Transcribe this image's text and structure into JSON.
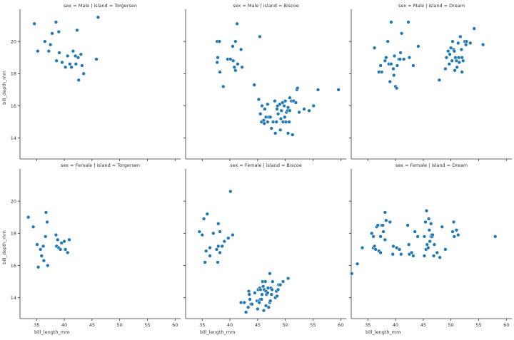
{
  "chart_data": {
    "type": "scatter",
    "layout": "facet-grid 2 rows x 3 columns, shared axes",
    "xlabel": "bill_length_mm",
    "ylabel": "bill_depth_mm",
    "xlim": [
      32,
      61
    ],
    "ylim": [
      12.7,
      22
    ],
    "xticks": [
      35,
      40,
      45,
      50,
      55,
      60
    ],
    "yticks": [
      14,
      16,
      18,
      20
    ],
    "grid": false,
    "point_color": "#1f77b4",
    "panels": [
      {
        "title": "sex = Male | island = Torgersen",
        "points": [
          [
            34.6,
            21.1
          ],
          [
            35.2,
            19.4
          ],
          [
            36.5,
            20.0
          ],
          [
            37.2,
            19.4
          ],
          [
            37.5,
            19.8
          ],
          [
            37.8,
            20.5
          ],
          [
            38.5,
            21.2
          ],
          [
            39.0,
            20.6
          ],
          [
            38.6,
            18.8
          ],
          [
            39.1,
            19.3
          ],
          [
            39.6,
            18.7
          ],
          [
            40.2,
            18.4
          ],
          [
            40.6,
            19.1
          ],
          [
            41.0,
            18.6
          ],
          [
            41.3,
            18.4
          ],
          [
            41.6,
            19.4
          ],
          [
            42.0,
            19.1
          ],
          [
            42.1,
            18.6
          ],
          [
            42.3,
            20.7
          ],
          [
            42.6,
            17.6
          ],
          [
            42.5,
            19.0
          ],
          [
            43.0,
            19.2
          ],
          [
            43.2,
            18.5
          ],
          [
            43.5,
            18.0
          ],
          [
            45.8,
            18.9
          ],
          [
            46.1,
            21.5
          ]
        ]
      },
      {
        "title": "sex = Male | island = Biscoe",
        "points": [
          [
            37.7,
            20.0
          ],
          [
            38.1,
            20.0
          ],
          [
            37.8,
            19.0
          ],
          [
            37.7,
            18.7
          ],
          [
            38.2,
            18.1
          ],
          [
            38.8,
            17.2
          ],
          [
            39.6,
            18.9
          ],
          [
            40.1,
            18.9
          ],
          [
            40.6,
            18.8
          ],
          [
            40.5,
            19.7
          ],
          [
            40.8,
            18.4
          ],
          [
            41.0,
            20.0
          ],
          [
            41.3,
            21.1
          ],
          [
            41.0,
            18.2
          ],
          [
            41.4,
            18.6
          ],
          [
            42.0,
            19.5
          ],
          [
            42.2,
            18.4
          ],
          [
            44.4,
            17.3
          ],
          [
            45.4,
            20.3
          ],
          [
            45.2,
            16.4
          ],
          [
            45.8,
            16.0
          ],
          [
            45.5,
            15.5
          ],
          [
            45.7,
            15.0
          ],
          [
            46.1,
            15.1
          ],
          [
            46.2,
            14.9
          ],
          [
            46.3,
            15.8
          ],
          [
            46.5,
            15.3
          ],
          [
            46.8,
            15.0
          ],
          [
            46.8,
            16.1
          ],
          [
            47.0,
            15.3
          ],
          [
            47.3,
            15.3
          ],
          [
            47.5,
            14.6
          ],
          [
            47.8,
            15.0
          ],
          [
            48.1,
            16.3
          ],
          [
            48.2,
            14.3
          ],
          [
            48.4,
            15.0
          ],
          [
            48.5,
            15.8
          ],
          [
            48.6,
            16.0
          ],
          [
            48.7,
            15.5
          ],
          [
            49.0,
            16.1
          ],
          [
            49.1,
            14.5
          ],
          [
            49.2,
            15.2
          ],
          [
            49.3,
            15.7
          ],
          [
            49.5,
            16.2
          ],
          [
            49.6,
            15.0
          ],
          [
            49.8,
            16.0
          ],
          [
            49.9,
            15.3
          ],
          [
            50.0,
            16.3
          ],
          [
            50.1,
            15.0
          ],
          [
            50.2,
            15.6
          ],
          [
            50.4,
            15.7
          ],
          [
            50.5,
            15.9
          ],
          [
            50.5,
            14.3
          ],
          [
            50.7,
            15.0
          ],
          [
            50.8,
            15.7
          ],
          [
            50.8,
            16.5
          ],
          [
            51.1,
            16.3
          ],
          [
            51.3,
            14.2
          ],
          [
            51.5,
            16.3
          ],
          [
            51.9,
            16.2
          ],
          [
            52.1,
            17.0
          ],
          [
            52.2,
            17.1
          ],
          [
            52.5,
            15.6
          ],
          [
            53.4,
            15.8
          ],
          [
            54.3,
            15.7
          ],
          [
            55.1,
            16.0
          ],
          [
            55.9,
            17.0
          ],
          [
            59.6,
            17.0
          ]
        ]
      },
      {
        "title": "sex = Male | island = Dream",
        "points": [
          [
            36.2,
            19.6
          ],
          [
            37.0,
            18.1
          ],
          [
            37.3,
            18.5
          ],
          [
            37.5,
            18.1
          ],
          [
            38.1,
            18.8
          ],
          [
            38.3,
            19.0
          ],
          [
            38.6,
            20.0
          ],
          [
            38.8,
            18.6
          ],
          [
            39.0,
            17.5
          ],
          [
            39.2,
            18.6
          ],
          [
            39.2,
            21.2
          ],
          [
            39.6,
            18.3
          ],
          [
            39.7,
            17.9
          ],
          [
            39.8,
            19.1
          ],
          [
            40.0,
            17.2
          ],
          [
            40.2,
            17.1
          ],
          [
            40.3,
            18.5
          ],
          [
            40.6,
            18.9
          ],
          [
            40.8,
            18.9
          ],
          [
            40.9,
            19.3
          ],
          [
            41.1,
            20.5
          ],
          [
            41.5,
            18.9
          ],
          [
            42.3,
            21.2
          ],
          [
            42.5,
            19.0
          ],
          [
            43.2,
            18.5
          ],
          [
            44.1,
            19.7
          ],
          [
            47.9,
            17.6
          ],
          [
            49.0,
            18.3
          ],
          [
            49.2,
            19.0
          ],
          [
            49.5,
            19.4
          ],
          [
            49.7,
            18.6
          ],
          [
            49.8,
            19.2
          ],
          [
            50.0,
            19.6
          ],
          [
            50.2,
            18.8
          ],
          [
            50.3,
            20.0
          ],
          [
            50.5,
            19.5
          ],
          [
            50.6,
            19.4
          ],
          [
            50.7,
            18.2
          ],
          [
            50.8,
            19.0
          ],
          [
            51.0,
            18.8
          ],
          [
            51.1,
            18.4
          ],
          [
            51.3,
            19.9
          ],
          [
            51.4,
            19.0
          ],
          [
            51.5,
            18.7
          ],
          [
            51.7,
            20.3
          ],
          [
            51.9,
            19.5
          ],
          [
            52.0,
            18.1
          ],
          [
            52.0,
            19.0
          ],
          [
            52.2,
            18.8
          ],
          [
            52.5,
            20.0
          ],
          [
            52.7,
            19.8
          ],
          [
            52.8,
            20.0
          ],
          [
            53.5,
            19.9
          ],
          [
            54.2,
            20.8
          ],
          [
            55.8,
            19.8
          ]
        ]
      },
      {
        "title": "sex = Female | island = Torgersen",
        "points": [
          [
            33.5,
            19.0
          ],
          [
            34.4,
            18.4
          ],
          [
            35.1,
            17.3
          ],
          [
            35.3,
            15.9
          ],
          [
            35.7,
            17.0
          ],
          [
            35.9,
            16.6
          ],
          [
            36.2,
            17.2
          ],
          [
            36.3,
            16.3
          ],
          [
            36.6,
            17.8
          ],
          [
            36.7,
            19.3
          ],
          [
            36.9,
            18.7
          ],
          [
            37.0,
            16.0
          ],
          [
            38.5,
            17.9
          ],
          [
            38.6,
            17.2
          ],
          [
            38.8,
            17.6
          ],
          [
            39.0,
            17.1
          ],
          [
            39.3,
            17.0
          ],
          [
            39.5,
            17.4
          ],
          [
            40.0,
            17.5
          ],
          [
            40.2,
            17.0
          ],
          [
            40.6,
            16.8
          ],
          [
            40.9,
            17.6
          ]
        ]
      },
      {
        "title": "sex = Female | island = Biscoe",
        "points": [
          [
            34.5,
            18.1
          ],
          [
            35.0,
            17.9
          ],
          [
            35.3,
            18.9
          ],
          [
            35.5,
            16.2
          ],
          [
            35.7,
            16.9
          ],
          [
            35.9,
            19.2
          ],
          [
            36.4,
            17.1
          ],
          [
            36.4,
            16.6
          ],
          [
            37.0,
            18.0
          ],
          [
            37.6,
            17.0
          ],
          [
            37.8,
            16.2
          ],
          [
            37.9,
            17.2
          ],
          [
            37.9,
            18.6
          ],
          [
            38.2,
            18.1
          ],
          [
            38.2,
            16.8
          ],
          [
            38.6,
            17.2
          ],
          [
            39.0,
            17.5
          ],
          [
            39.7,
            17.7
          ],
          [
            40.1,
            20.6
          ],
          [
            40.5,
            17.9
          ],
          [
            42.0,
            13.7
          ],
          [
            42.6,
            13.7
          ],
          [
            42.9,
            13.1
          ],
          [
            43.3,
            13.4
          ],
          [
            43.4,
            14.4
          ],
          [
            43.5,
            14.2
          ],
          [
            43.6,
            13.9
          ],
          [
            43.8,
            13.6
          ],
          [
            44.0,
            13.6
          ],
          [
            44.5,
            14.3
          ],
          [
            44.9,
            13.8
          ],
          [
            45.0,
            13.3
          ],
          [
            45.1,
            14.5
          ],
          [
            45.2,
            13.8
          ],
          [
            45.3,
            13.7
          ],
          [
            45.4,
            14.6
          ],
          [
            45.5,
            13.9
          ],
          [
            45.5,
            14.5
          ],
          [
            45.7,
            13.9
          ],
          [
            45.8,
            14.2
          ],
          [
            45.9,
            15.0
          ],
          [
            46.0,
            14.7
          ],
          [
            46.1,
            13.2
          ],
          [
            46.2,
            14.5
          ],
          [
            46.4,
            15.0
          ],
          [
            46.5,
            14.4
          ],
          [
            46.5,
            13.5
          ],
          [
            46.6,
            14.2
          ],
          [
            46.8,
            14.3
          ],
          [
            46.9,
            14.6
          ],
          [
            47.0,
            13.4
          ],
          [
            47.2,
            13.7
          ],
          [
            47.2,
            15.5
          ],
          [
            47.3,
            13.8
          ],
          [
            47.4,
            14.6
          ],
          [
            47.5,
            14.2
          ],
          [
            47.6,
            14.5
          ],
          [
            47.7,
            15.0
          ],
          [
            48.2,
            14.0
          ],
          [
            48.4,
            14.4
          ],
          [
            48.5,
            14.1
          ],
          [
            48.7,
            14.5
          ],
          [
            48.8,
            14.8
          ],
          [
            49.1,
            14.8
          ],
          [
            49.6,
            15.0
          ],
          [
            50.5,
            15.2
          ]
        ]
      },
      {
        "title": "sex = Female | island = Dream",
        "points": [
          [
            32.1,
            15.5
          ],
          [
            33.1,
            16.1
          ],
          [
            34.0,
            17.1
          ],
          [
            35.7,
            18.0
          ],
          [
            36.0,
            17.8
          ],
          [
            36.0,
            17.1
          ],
          [
            36.2,
            17.2
          ],
          [
            36.4,
            17.0
          ],
          [
            36.6,
            18.4
          ],
          [
            36.8,
            18.5
          ],
          [
            37.0,
            16.9
          ],
          [
            37.3,
            16.8
          ],
          [
            37.3,
            17.8
          ],
          [
            37.5,
            18.5
          ],
          [
            37.7,
            18.5
          ],
          [
            37.8,
            18.1
          ],
          [
            38.1,
            17.6
          ],
          [
            38.1,
            19.3
          ],
          [
            38.3,
            18.8
          ],
          [
            39.0,
            18.7
          ],
          [
            39.5,
            16.7
          ],
          [
            39.6,
            17.2
          ],
          [
            40.2,
            17.1
          ],
          [
            40.7,
            17.0
          ],
          [
            41.0,
            16.7
          ],
          [
            42.2,
            18.5
          ],
          [
            42.4,
            17.3
          ],
          [
            42.5,
            16.7
          ],
          [
            42.9,
            16.8
          ],
          [
            43.2,
            16.6
          ],
          [
            43.5,
            18.1
          ],
          [
            44.0,
            17.8
          ],
          [
            45.2,
            17.8
          ],
          [
            45.2,
            16.6
          ],
          [
            45.4,
            18.7
          ],
          [
            45.5,
            17.0
          ],
          [
            45.6,
            19.4
          ],
          [
            45.7,
            17.3
          ],
          [
            45.9,
            17.1
          ],
          [
            46.0,
            18.9
          ],
          [
            46.1,
            18.2
          ],
          [
            46.2,
            17.5
          ],
          [
            46.4,
            18.6
          ],
          [
            46.4,
            17.8
          ],
          [
            46.5,
            17.9
          ],
          [
            46.6,
            17.8
          ],
          [
            46.7,
            17.9
          ],
          [
            46.9,
            16.6
          ],
          [
            47.0,
            17.3
          ],
          [
            47.5,
            16.8
          ],
          [
            48.0,
            16.5
          ],
          [
            48.4,
            18.4
          ],
          [
            49.0,
            17.0
          ],
          [
            50.3,
            18.1
          ],
          [
            50.5,
            18.7
          ],
          [
            50.6,
            17.8
          ],
          [
            51.0,
            18.2
          ],
          [
            51.3,
            17.9
          ],
          [
            58.0,
            17.8
          ]
        ]
      }
    ]
  }
}
